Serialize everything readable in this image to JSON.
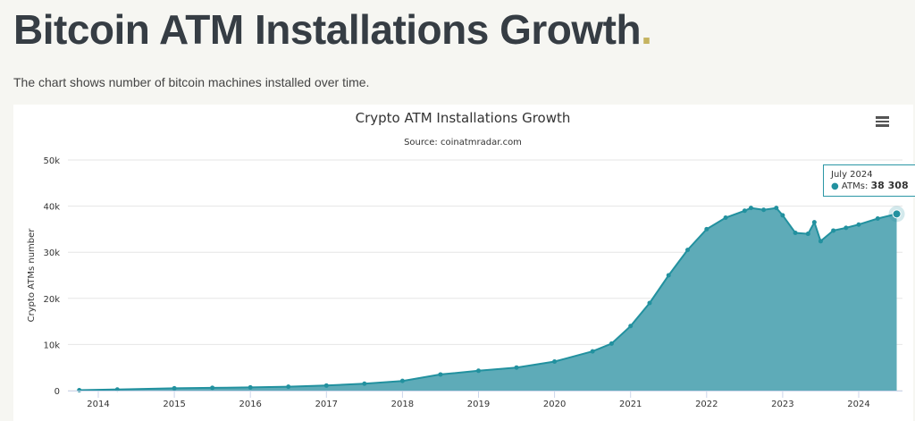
{
  "page": {
    "title": "Bitcoin ATM Installations Growth",
    "title_dot": ".",
    "subtitle": "The chart shows number of bitcoin machines installed over time."
  },
  "colors": {
    "area": "#5eabb8",
    "line": "#22919f",
    "accent_dot": "#c5b35f"
  },
  "menu_icon": "hamburger-menu-icon",
  "tooltip": {
    "date": "July 2024",
    "series": "ATMs",
    "value": "38 308"
  },
  "chart_data": {
    "type": "area",
    "title": "Crypto ATM Installations Growth",
    "subtitle": "Source: coinatmradar.com",
    "ylabel": "Crypto ATMs number",
    "xlabel": "",
    "ylim": [
      0,
      50000
    ],
    "yticks": [
      0,
      10000,
      20000,
      30000,
      40000,
      50000
    ],
    "ytick_labels": [
      "0",
      "10k",
      "20k",
      "30k",
      "40k",
      "50k"
    ],
    "xtick_labels": [
      "2014",
      "2015",
      "2016",
      "2017",
      "2018",
      "2019",
      "2020",
      "2021",
      "2022",
      "2023",
      "2024"
    ],
    "grid": true,
    "legend": "none",
    "series": [
      {
        "name": "ATMs",
        "points": [
          [
            "2013-10",
            100
          ],
          [
            "2014-04",
            250
          ],
          [
            "2015-01",
            500
          ],
          [
            "2015-07",
            600
          ],
          [
            "2016-01",
            700
          ],
          [
            "2016-07",
            850
          ],
          [
            "2017-01",
            1100
          ],
          [
            "2017-07",
            1500
          ],
          [
            "2018-01",
            2100
          ],
          [
            "2018-07",
            3500
          ],
          [
            "2019-01",
            4300
          ],
          [
            "2019-07",
            5000
          ],
          [
            "2020-01",
            6300
          ],
          [
            "2020-07",
            8500
          ],
          [
            "2020-10",
            10200
          ],
          [
            "2021-01",
            14000
          ],
          [
            "2021-04",
            19000
          ],
          [
            "2021-07",
            25000
          ],
          [
            "2021-10",
            30500
          ],
          [
            "2022-01",
            35000
          ],
          [
            "2022-04",
            37500
          ],
          [
            "2022-07",
            39000
          ],
          [
            "2022-08",
            39600
          ],
          [
            "2022-10",
            39200
          ],
          [
            "2022-12",
            39600
          ],
          [
            "2023-01",
            38000
          ],
          [
            "2023-03",
            34200
          ],
          [
            "2023-05",
            34000
          ],
          [
            "2023-06",
            36500
          ],
          [
            "2023-07",
            32400
          ],
          [
            "2023-09",
            34700
          ],
          [
            "2023-11",
            35300
          ],
          [
            "2024-01",
            36000
          ],
          [
            "2024-04",
            37300
          ],
          [
            "2024-07",
            38308
          ]
        ]
      }
    ]
  }
}
